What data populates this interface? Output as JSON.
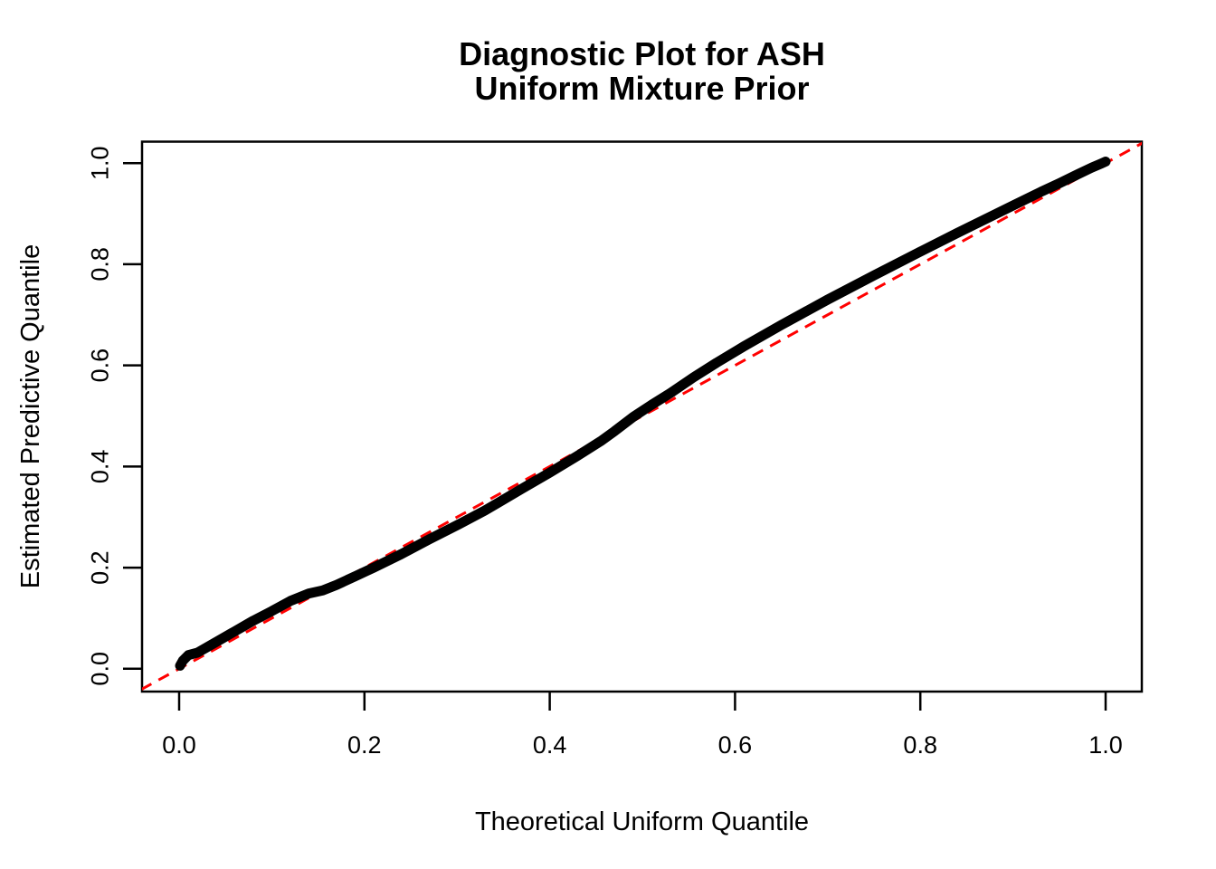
{
  "title": {
    "line1": "Diagnostic Plot for ASH",
    "line2": "Uniform Mixture Prior"
  },
  "axes": {
    "x_label": "Theoretical Uniform Quantile",
    "y_label": "Estimated Predictive Quantile"
  },
  "colors": {
    "curve": "#000000",
    "reference_line": "#FF0000",
    "axis": "#000000",
    "background": "#FFFFFF"
  },
  "chart_data": {
    "type": "line",
    "title": "Diagnostic Plot for ASH Uniform Mixture Prior",
    "xlabel": "Theoretical Uniform Quantile",
    "ylabel": "Estimated Predictive Quantile",
    "xlim": [
      -0.04,
      1.04
    ],
    "ylim": [
      -0.045,
      1.042
    ],
    "grid": false,
    "legend_position": "none",
    "x_ticks": [
      0.0,
      0.2,
      0.4,
      0.6,
      0.8,
      1.0
    ],
    "x_tick_labels": [
      "0.0",
      "0.2",
      "0.4",
      "0.6",
      "0.8",
      "1.0"
    ],
    "y_ticks": [
      0.0,
      0.2,
      0.4,
      0.6,
      0.8,
      1.0
    ],
    "y_tick_labels": [
      "0.0",
      "0.2",
      "0.4",
      "0.6",
      "0.8",
      "1.0"
    ],
    "series": [
      {
        "name": "estimated-predictive-quantiles",
        "color": "#000000",
        "style": "solid",
        "line_width": 11,
        "points": [
          [
            0.001,
            0.006
          ],
          [
            0.004,
            0.016
          ],
          [
            0.01,
            0.027
          ],
          [
            0.02,
            0.032
          ],
          [
            0.04,
            0.053
          ],
          [
            0.06,
            0.074
          ],
          [
            0.08,
            0.095
          ],
          [
            0.1,
            0.114
          ],
          [
            0.12,
            0.134
          ],
          [
            0.14,
            0.149
          ],
          [
            0.155,
            0.155
          ],
          [
            0.17,
            0.166
          ],
          [
            0.19,
            0.183
          ],
          [
            0.21,
            0.2
          ],
          [
            0.24,
            0.227
          ],
          [
            0.27,
            0.256
          ],
          [
            0.3,
            0.284
          ],
          [
            0.33,
            0.313
          ],
          [
            0.345,
            0.329
          ],
          [
            0.37,
            0.356
          ],
          [
            0.4,
            0.388
          ],
          [
            0.43,
            0.421
          ],
          [
            0.455,
            0.45
          ],
          [
            0.47,
            0.47
          ],
          [
            0.49,
            0.498
          ],
          [
            0.51,
            0.522
          ],
          [
            0.53,
            0.545
          ],
          [
            0.555,
            0.576
          ],
          [
            0.58,
            0.605
          ],
          [
            0.61,
            0.638
          ],
          [
            0.65,
            0.68
          ],
          [
            0.7,
            0.73
          ],
          [
            0.75,
            0.778
          ],
          [
            0.8,
            0.825
          ],
          [
            0.84,
            0.862
          ],
          [
            0.87,
            0.889
          ],
          [
            0.9,
            0.916
          ],
          [
            0.93,
            0.943
          ],
          [
            0.95,
            0.96
          ],
          [
            0.97,
            0.978
          ],
          [
            0.985,
            0.991
          ],
          [
            0.995,
            0.999
          ],
          [
            1.0,
            1.003
          ]
        ]
      },
      {
        "name": "identity-reference-line",
        "color": "#FF0000",
        "style": "dashed",
        "line_width": 3,
        "points": [
          [
            -0.06,
            -0.06
          ],
          [
            1.06,
            1.06
          ]
        ]
      }
    ]
  }
}
